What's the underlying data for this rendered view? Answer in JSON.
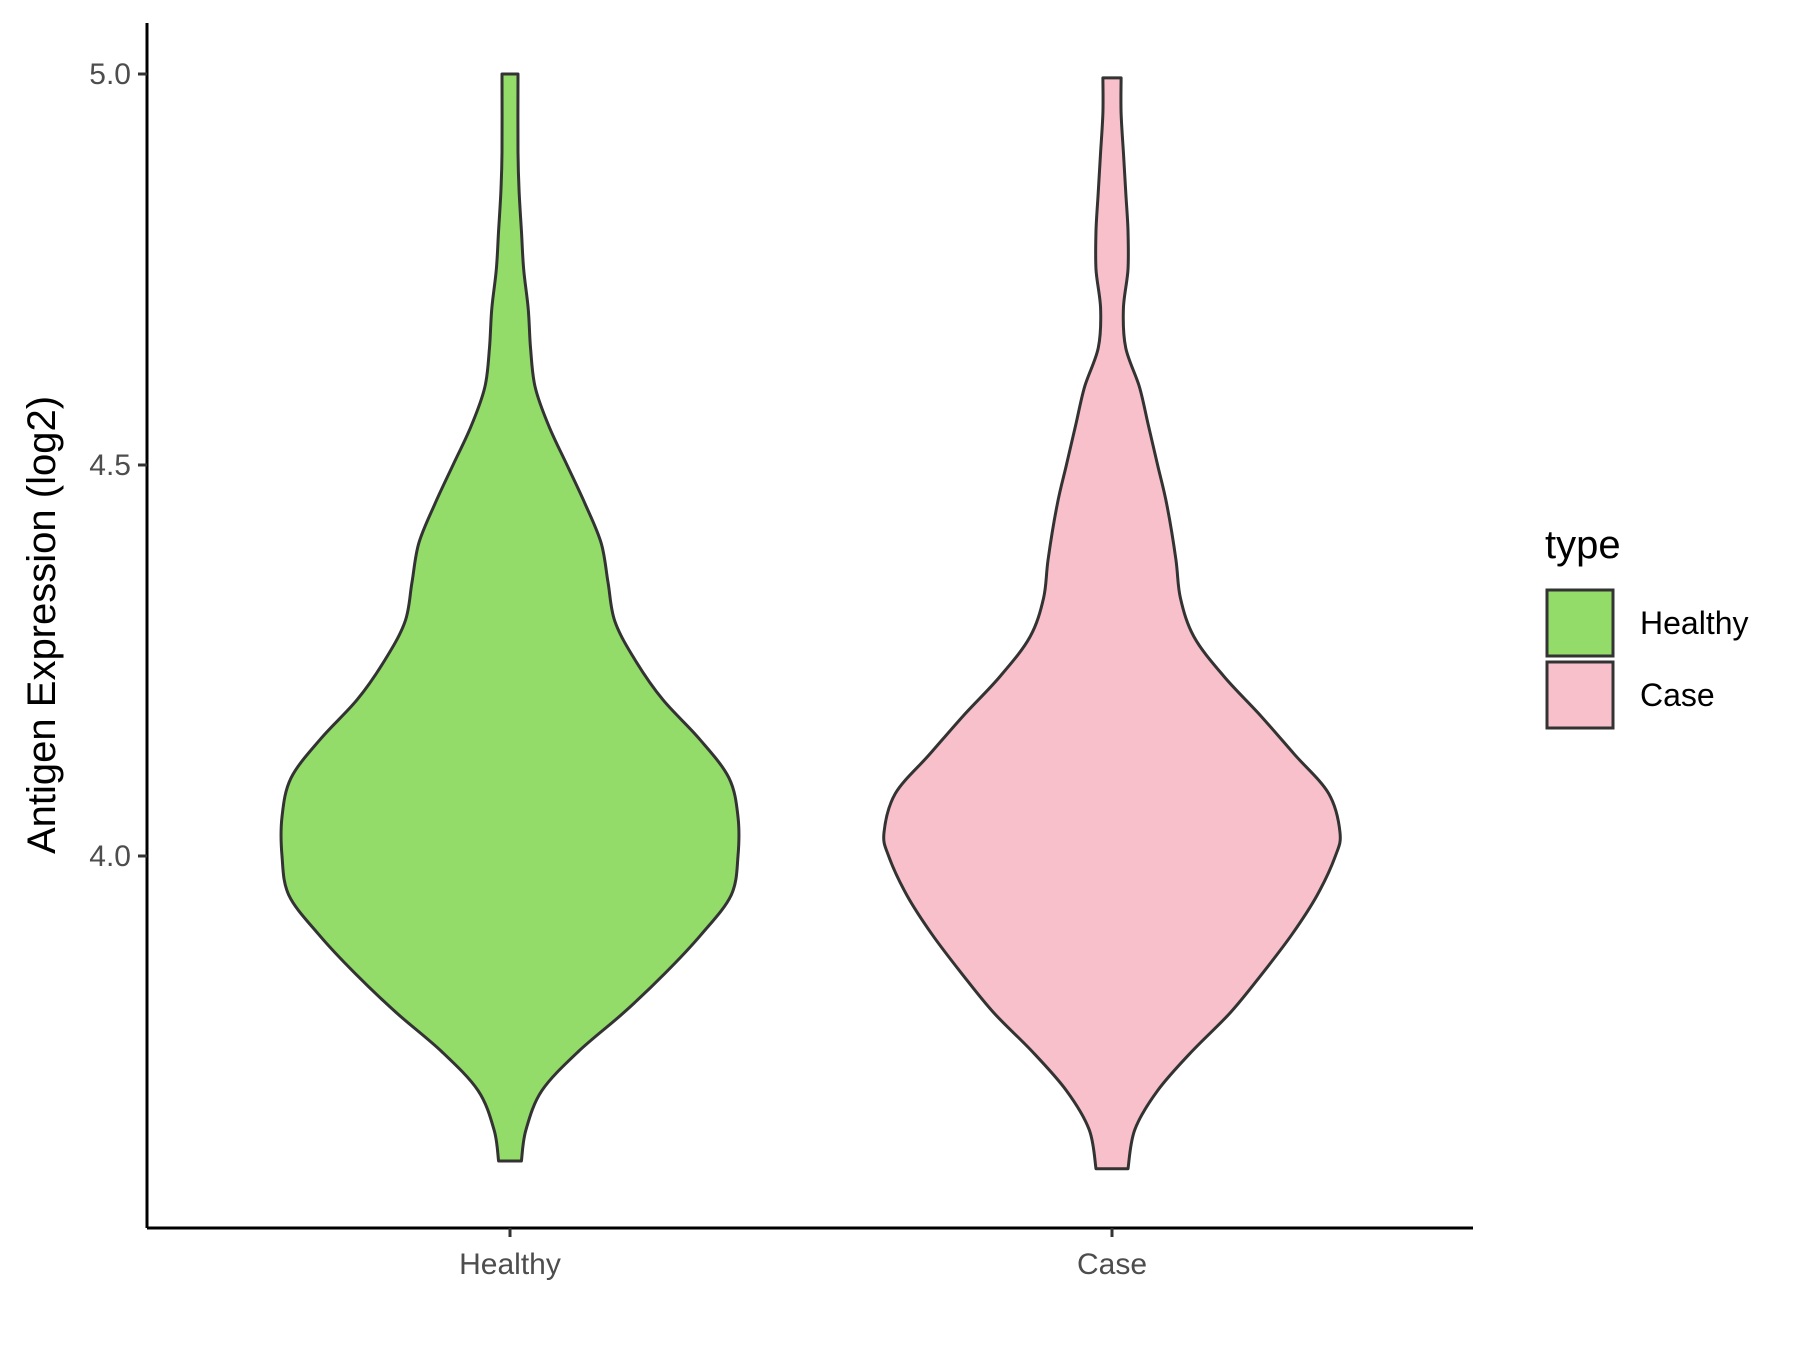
{
  "chart_data": {
    "type": "violin",
    "title": "",
    "xlabel": "",
    "ylabel": "Antigen Expression (log2)",
    "ylim": [
      3.57,
      5.07
    ],
    "yticks": [
      "4.0",
      "4.5",
      "5.0"
    ],
    "yticks_values": [
      4.0,
      4.5,
      5.0
    ],
    "categories": [
      "Healthy",
      "Case"
    ],
    "grid": false,
    "legend": {
      "title": "type",
      "placement": "right",
      "entries": [
        "Healthy",
        "Case"
      ]
    },
    "series": [
      {
        "name": "Healthy",
        "color": "#93DC6A",
        "min": 3.61,
        "max": 5.0,
        "density": [
          [
            3.61,
            0.05
          ],
          [
            3.65,
            0.07
          ],
          [
            3.7,
            0.14
          ],
          [
            3.75,
            0.3
          ],
          [
            3.8,
            0.5
          ],
          [
            3.85,
            0.68
          ],
          [
            3.9,
            0.84
          ],
          [
            3.95,
            0.97
          ],
          [
            4.0,
            1.0
          ],
          [
            4.05,
            1.0
          ],
          [
            4.1,
            0.96
          ],
          [
            4.15,
            0.83
          ],
          [
            4.2,
            0.67
          ],
          [
            4.25,
            0.55
          ],
          [
            4.3,
            0.46
          ],
          [
            4.35,
            0.43
          ],
          [
            4.4,
            0.4
          ],
          [
            4.45,
            0.33
          ],
          [
            4.5,
            0.25
          ],
          [
            4.55,
            0.17
          ],
          [
            4.6,
            0.11
          ],
          [
            4.65,
            0.09
          ],
          [
            4.7,
            0.08
          ],
          [
            4.75,
            0.06
          ],
          [
            4.8,
            0.05
          ],
          [
            4.85,
            0.04
          ],
          [
            4.9,
            0.035
          ],
          [
            5.0,
            0.035
          ]
        ]
      },
      {
        "name": "Case",
        "color": "#F7C0CB",
        "min": 3.6,
        "max": 4.995,
        "density": [
          [
            3.6,
            0.07
          ],
          [
            3.65,
            0.1
          ],
          [
            3.7,
            0.2
          ],
          [
            3.75,
            0.35
          ],
          [
            3.8,
            0.52
          ],
          [
            3.85,
            0.66
          ],
          [
            3.9,
            0.79
          ],
          [
            3.95,
            0.9
          ],
          [
            4.0,
            0.98
          ],
          [
            4.03,
            1.0
          ],
          [
            4.08,
            0.95
          ],
          [
            4.13,
            0.8
          ],
          [
            4.18,
            0.65
          ],
          [
            4.23,
            0.49
          ],
          [
            4.28,
            0.36
          ],
          [
            4.33,
            0.3
          ],
          [
            4.38,
            0.28
          ],
          [
            4.45,
            0.24
          ],
          [
            4.5,
            0.2
          ],
          [
            4.55,
            0.16
          ],
          [
            4.6,
            0.12
          ],
          [
            4.65,
            0.06
          ],
          [
            4.7,
            0.05
          ],
          [
            4.75,
            0.07
          ],
          [
            4.8,
            0.07
          ],
          [
            4.85,
            0.06
          ],
          [
            4.9,
            0.05
          ],
          [
            4.95,
            0.04
          ],
          [
            4.995,
            0.04
          ]
        ]
      }
    ]
  }
}
